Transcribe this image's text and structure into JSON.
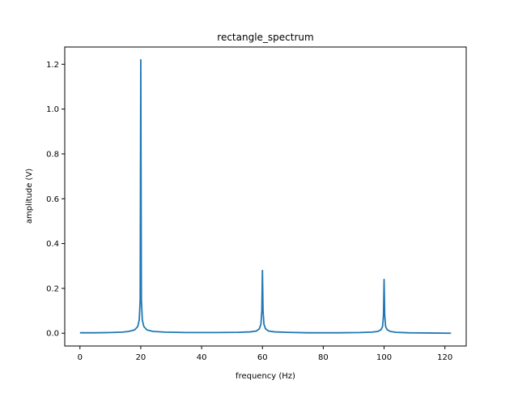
{
  "chart_data": {
    "type": "line",
    "title": "rectangle_spectrum",
    "xlabel": "frequency (Hz)",
    "ylabel": "amplitude (V)",
    "xlim": [
      -5,
      127
    ],
    "ylim": [
      -0.057,
      1.277
    ],
    "x_ticks": [
      0,
      20,
      40,
      60,
      80,
      100,
      120
    ],
    "x_tick_labels": [
      "0",
      "20",
      "40",
      "60",
      "80",
      "100",
      "120"
    ],
    "y_ticks": [
      0.0,
      0.2,
      0.4,
      0.6,
      0.8,
      1.0,
      1.2
    ],
    "y_tick_labels": [
      "0.0",
      "0.2",
      "0.4",
      "0.6",
      "0.8",
      "1.0",
      "1.2"
    ],
    "grid": false,
    "legend": "none",
    "series": [
      {
        "color": "#1f77b4",
        "x": [
          0,
          5,
          10,
          14,
          16,
          18,
          19,
          19.5,
          19.8,
          20.0,
          20.2,
          20.5,
          21,
          22,
          24,
          28,
          35,
          45,
          52,
          56,
          58,
          59,
          59.5,
          59.8,
          60.0,
          60.2,
          60.5,
          61,
          62,
          64,
          68,
          75,
          85,
          92,
          96,
          98,
          99,
          99.5,
          99.8,
          100.0,
          100.2,
          100.5,
          101,
          102,
          104,
          108,
          115,
          122
        ],
        "y": [
          0.002,
          0.002,
          0.003,
          0.005,
          0.008,
          0.015,
          0.03,
          0.06,
          0.15,
          1.22,
          0.15,
          0.06,
          0.03,
          0.015,
          0.008,
          0.005,
          0.003,
          0.003,
          0.004,
          0.006,
          0.01,
          0.02,
          0.04,
          0.1,
          0.28,
          0.1,
          0.04,
          0.02,
          0.01,
          0.006,
          0.004,
          0.002,
          0.002,
          0.003,
          0.005,
          0.008,
          0.016,
          0.03,
          0.08,
          0.24,
          0.08,
          0.03,
          0.016,
          0.008,
          0.004,
          0.002,
          0.001,
          0.0
        ]
      }
    ]
  }
}
